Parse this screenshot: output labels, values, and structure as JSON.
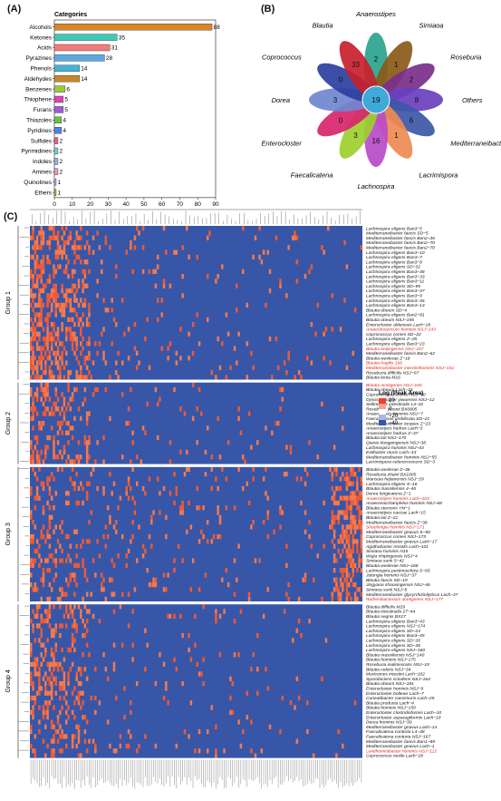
{
  "panels": {
    "a": "(A)",
    "b": "(B)",
    "c": "(C)"
  },
  "chart_data": [
    {
      "type": "bar",
      "orientation": "horizontal",
      "legend_title": "Categories",
      "categories": [
        "Alcohols",
        "Ketones",
        "Acids",
        "Pyrazines",
        "Phenols",
        "Aldehydes",
        "Benzenes",
        "Thiophene",
        "Furans",
        "Thiazoles",
        "Pyridines",
        "Sulfides",
        "Pyrimidines",
        "Indoles",
        "Amines",
        "Quinolines",
        "Ethers"
      ],
      "values": [
        88,
        35,
        31,
        28,
        14,
        14,
        6,
        5,
        5,
        4,
        4,
        2,
        2,
        2,
        2,
        1,
        1
      ],
      "colors": [
        "#d9862b",
        "#3fc9b8",
        "#f47b7b",
        "#5aa9de",
        "#47b2d6",
        "#c9852a",
        "#9bc93a",
        "#d944b6",
        "#a05ad6",
        "#68c24a",
        "#4a83e6",
        "#e0628c",
        "#7ec9c6",
        "#9aaed6",
        "#e79ab7",
        "#b9a2e6",
        "#c9a63a"
      ],
      "xlabel": "Number of metabolites in each category",
      "xticks": [
        0,
        10,
        20,
        30,
        40,
        50,
        60,
        70,
        80,
        90
      ],
      "xlim": [
        0,
        90
      ]
    },
    {
      "type": "flower",
      "core_value": 19,
      "petals": [
        {
          "name": "Anaerostipes",
          "value": 2,
          "color": "#2aa48e"
        },
        {
          "name": "Simiaoa",
          "value": 1,
          "color": "#8a5a18"
        },
        {
          "name": "Roseburia",
          "value": 2,
          "color": "#7a2f8a"
        },
        {
          "name": "Others",
          "value": 8,
          "color": "#6a3fbf"
        },
        {
          "name": "Mediterraneibacter",
          "value": 6,
          "color": "#3b57a6"
        },
        {
          "name": "Lacrimispora",
          "value": 1,
          "color": "#ee8a52"
        },
        {
          "name": "Lachnospira",
          "value": 16,
          "color": "#b94bc9"
        },
        {
          "name": "Faecalicatena",
          "value": 3,
          "color": "#9ccf2c"
        },
        {
          "name": "Enterocloster",
          "value": 0,
          "color": "#d8256c"
        },
        {
          "name": "Dorea",
          "value": 3,
          "color": "#6f87cf"
        },
        {
          "name": "Coprococcus",
          "value": 0,
          "color": "#2b3f9e"
        },
        {
          "name": "Blautia",
          "value": 33,
          "color": "#c8202e"
        }
      ]
    },
    {
      "type": "heatmap",
      "legend_title": "Log (Peak Area)",
      "legend_ticks": [
        "20",
        "0",
        "−20",
        "−40"
      ],
      "groups": [
        "Group 1",
        "Group 2",
        "Group 3",
        "Group 4"
      ],
      "rows": [
        {
          "label": "Lachnospira eligens Ban3−5",
          "group": 1,
          "red": false
        },
        {
          "label": "Mediterraneibacter faecis SD−5",
          "group": 1,
          "red": false
        },
        {
          "label": "Mediterraneibacter faecis Ban2−36",
          "group": 1,
          "red": false
        },
        {
          "label": "Mediterraneibacter faecis Ban2−70",
          "group": 1,
          "red": false
        },
        {
          "label": "Mediterraneibacter faecis Ban2−70",
          "group": 1,
          "red": false
        },
        {
          "label": "Lachnospira eligens Ban3−10",
          "group": 1,
          "red": false
        },
        {
          "label": "Lachnospira eligens Ban3−7",
          "group": 1,
          "red": false
        },
        {
          "label": "Lachnospira eligens Ban3−8",
          "group": 1,
          "red": false
        },
        {
          "label": "Lachnospira eligens SD−32",
          "group": 1,
          "red": false
        },
        {
          "label": "Lachnospira eligens Ban3−38",
          "group": 1,
          "red": false
        },
        {
          "label": "Lachnospira eligens Ban3−33",
          "group": 1,
          "red": false
        },
        {
          "label": "Lachnospira eligens Ban3−11",
          "group": 1,
          "red": false
        },
        {
          "label": "Lachnospira eligens SD−95",
          "group": 1,
          "red": false
        },
        {
          "label": "Lachnospira eligens Ban3−37",
          "group": 1,
          "red": false
        },
        {
          "label": "Lachnospira eligens Ban3−9",
          "group": 1,
          "red": false
        },
        {
          "label": "Lachnospira eligens Ban3−36",
          "group": 1,
          "red": false
        },
        {
          "label": "Lachnospira eligens Ban3−13",
          "group": 1,
          "red": false
        },
        {
          "label": "Blautia obeum SD−4",
          "group": 1,
          "red": false
        },
        {
          "label": "Lachnospira eligens Ban2−81",
          "group": 1,
          "red": false
        },
        {
          "label": "Blautia obeum NSJ−155",
          "group": 1,
          "red": false
        },
        {
          "label": "Enterocloster aldenesis Lach−18",
          "group": 1,
          "red": false
        },
        {
          "label": "Anaerobutyricum hominis NSJ−143",
          "group": 1,
          "red": true
        },
        {
          "label": "Coprococcus comes SD−22",
          "group": 1,
          "red": false
        },
        {
          "label": "Lachnospira eligens Z−28",
          "group": 1,
          "red": false
        },
        {
          "label": "Lachnospira eligens Ban3−23",
          "group": 1,
          "red": false
        },
        {
          "label": "Blautia beijingensis NSJ−157",
          "group": 1,
          "red": true
        },
        {
          "label": "Mediterraneibacter faecis Ban2−62",
          "group": 1,
          "red": false
        },
        {
          "label": "Blautia wexlerae Z−18",
          "group": 1,
          "red": false
        },
        {
          "label": "Blautia fragilis 166",
          "group": 1,
          "red": true
        },
        {
          "label": "Mediterraneibacter intestinihominis NSJ−151",
          "group": 1,
          "red": true
        },
        {
          "label": "Roseburia difficilis NSJ−67",
          "group": 1,
          "red": false
        },
        {
          "label": "Blautia lenta M16",
          "group": 1,
          "red": false
        },
        {
          "label": "Blautia acetigenes NSJ−165",
          "group": 2,
          "red": true
        },
        {
          "label": "Blautia obeum Lach−24",
          "group": 2,
          "red": false
        },
        {
          "label": "Coprococcus hominis NSJ−10",
          "group": 2,
          "red": false
        },
        {
          "label": "Dysosmobacter yiwuensis NSJ−12",
          "group": 2,
          "red": false
        },
        {
          "label": "Sellimonas intestinalis L4−32",
          "group": 2,
          "red": false
        },
        {
          "label": "Roseburia yibonii BX0805",
          "group": 2,
          "red": false
        },
        {
          "label": "Anaerostipes hominis NSJ−7",
          "group": 2,
          "red": false
        },
        {
          "label": "Faecalimonas umbilicata SD−21",
          "group": 2,
          "red": false
        },
        {
          "label": "Mediterraneibacter torques Z−23",
          "group": 2,
          "red": false
        },
        {
          "label": "Anaerostipes hadrus Lach−3",
          "group": 2,
          "red": false
        },
        {
          "label": "Anaerostipes hadrus Z−37",
          "group": 2,
          "red": false
        },
        {
          "label": "Blautia luti NSJ−170",
          "group": 2,
          "red": false
        },
        {
          "label": "Qiania dongpingensis NSJ−38",
          "group": 2,
          "red": false
        },
        {
          "label": "Lachnospira hominis NSJ−43",
          "group": 2,
          "red": false
        },
        {
          "label": "Extibacter muris Lach−13",
          "group": 2,
          "red": false
        },
        {
          "label": "Mediterraneibacter hominis NSJ−55",
          "group": 2,
          "red": false
        },
        {
          "label": "Lacrimispora celerecrescens SD−3",
          "group": 2,
          "red": false
        },
        {
          "label": "Blautia wexlerae Z−36",
          "group": 3,
          "red": false
        },
        {
          "label": "Roseburia zhanii BX1005",
          "group": 3,
          "red": false
        },
        {
          "label": "Wansuia hejianensis NSJ−29",
          "group": 3,
          "red": false
        },
        {
          "label": "Lachnospira eligens S−16",
          "group": 3,
          "red": false
        },
        {
          "label": "Blautia massiliensis 4−46",
          "group": 3,
          "red": false
        },
        {
          "label": "Dorea longicatena Z−1",
          "group": 3,
          "red": false
        },
        {
          "label": "Anaerostipes hominis Lach−103",
          "group": 3,
          "red": true
        },
        {
          "label": "Anaerosacchariphilus hominis NSJ−68",
          "group": 3,
          "red": false
        },
        {
          "label": "Blautia stercoris YM−1",
          "group": 3,
          "red": false
        },
        {
          "label": "Anaerostipes caccae Lach−15",
          "group": 3,
          "red": false
        },
        {
          "label": "Blautia luti Z−21",
          "group": 3,
          "red": false
        },
        {
          "label": "Mediterraneibacter faecis Z−38",
          "group": 3,
          "red": false
        },
        {
          "label": "Shaofengia hominis NSJ−171",
          "group": 3,
          "red": true
        },
        {
          "label": "Mediterraneibacter gnavus S−50",
          "group": 3,
          "red": false
        },
        {
          "label": "Coprococcus comes NSJ−173",
          "group": 3,
          "red": false
        },
        {
          "label": "Mediterraneibacter gnavus Lach−17",
          "group": 3,
          "red": false
        },
        {
          "label": "Agathobacter rectalis Lach−101",
          "group": 3,
          "red": false
        },
        {
          "label": "Simiaoa hominis H15",
          "group": 3,
          "red": false
        },
        {
          "label": "Wujia chipingensis NSJ−4",
          "group": 3,
          "red": false
        },
        {
          "label": "Simiaoa sunii S−42",
          "group": 3,
          "red": false
        },
        {
          "label": "Blautia wexlerae NSJ−168",
          "group": 3,
          "red": false
        },
        {
          "label": "Lachnospira pectinoschiza S−65",
          "group": 3,
          "red": false
        },
        {
          "label": "Jutongia hominis NSJ−37",
          "group": 3,
          "red": false
        },
        {
          "label": "Blautia faecis SD−19",
          "group": 3,
          "red": false
        },
        {
          "label": "Jingyaoa shaoxingensis NSJ−46",
          "group": 3,
          "red": false
        },
        {
          "label": "Simiaoa sunii NSJ−8",
          "group": 3,
          "red": false
        },
        {
          "label": "Mediterraneibacter glycyrrhizinilyticus Lach−27",
          "group": 3,
          "red": false
        },
        {
          "label": "Ruthenibacterium acetigenes NSJ−177",
          "group": 3,
          "red": true
        },
        {
          "label": "Blautia difficilis M29",
          "group": 4,
          "red": false
        },
        {
          "label": "Blautia intestinalis 27−44",
          "group": 4,
          "red": false
        },
        {
          "label": "Blautia segnis BX17",
          "group": 4,
          "red": false
        },
        {
          "label": "Lachnospira eligens Ban3−43",
          "group": 4,
          "red": false
        },
        {
          "label": "Lachnospira eligens NSJ−174",
          "group": 4,
          "red": false
        },
        {
          "label": "Lachnospira eligens SD−24",
          "group": 4,
          "red": false
        },
        {
          "label": "Lachnospira eligens Ban3−45",
          "group": 4,
          "red": false
        },
        {
          "label": "Lachnospira eligens SD−26",
          "group": 4,
          "red": false
        },
        {
          "label": "Lachnospira eligens SD−36",
          "group": 4,
          "red": false
        },
        {
          "label": "Lachnospira eligens NSJ−160",
          "group": 4,
          "red": false
        },
        {
          "label": "Blautia massiliensis NSJ−140",
          "group": 4,
          "red": false
        },
        {
          "label": "Blautia hominis NSJ−175",
          "group": 4,
          "red": false
        },
        {
          "label": "Roseburia inulinivorans NSJ−19",
          "group": 4,
          "red": false
        },
        {
          "label": "Blautia celeris NSJ−34",
          "group": 4,
          "red": false
        },
        {
          "label": "Muricomes intestini Lach−102",
          "group": 4,
          "red": false
        },
        {
          "label": "Sporofaciens scindens NSJ−164",
          "group": 4,
          "red": false
        },
        {
          "label": "Blautia obeum NSJ−181",
          "group": 4,
          "red": false
        },
        {
          "label": "Enterocloster hominis NSJ−9",
          "group": 4,
          "red": false
        },
        {
          "label": "Enterocloster bolteae Lach−7",
          "group": 4,
          "red": false
        },
        {
          "label": "Cuneatibacter caecimuris Lach−25",
          "group": 4,
          "red": false
        },
        {
          "label": "Blautia producta Lach−4",
          "group": 4,
          "red": false
        },
        {
          "label": "Blautia hominis NSJ−159",
          "group": 4,
          "red": false
        },
        {
          "label": "Enterocloster clostridioformis Lach−10",
          "group": 4,
          "red": false
        },
        {
          "label": "Enterocloster asparagiformis Lach−19",
          "group": 4,
          "red": false
        },
        {
          "label": "Dorea hominis NSJ−30",
          "group": 4,
          "red": false
        },
        {
          "label": "Mediterraneibacter gnavus Lach−14",
          "group": 4,
          "red": false
        },
        {
          "label": "Faecalicatena contorta L4−48",
          "group": 4,
          "red": false
        },
        {
          "label": "Faecalicatena contorta NSJ−167",
          "group": 4,
          "red": false
        },
        {
          "label": "Mediterraneibacter faecis Ban1−89",
          "group": 4,
          "red": false
        },
        {
          "label": "Mediterraneibacter gnavus Lach−1",
          "group": 4,
          "red": false
        },
        {
          "label": "Lentihominibacter hominis NSJ−112",
          "group": 4,
          "red": true
        },
        {
          "label": "Coprococcus nexile Lach−28",
          "group": 4,
          "red": false
        }
      ]
    }
  ]
}
